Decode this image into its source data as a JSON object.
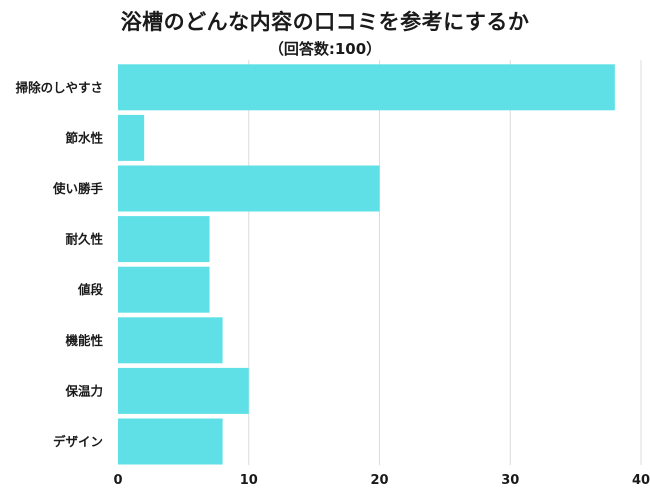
{
  "chart_data": {
    "type": "bar",
    "orientation": "horizontal",
    "title": "浴槽のどんな内容の口コミを参考にするか",
    "subtitle": "（回答数:100）",
    "categories": [
      "掃除のしやすさ",
      "節水性",
      "使い勝手",
      "耐久性",
      "値段",
      "機能性",
      "保温力",
      "デザイン"
    ],
    "values": [
      38,
      2,
      20,
      7,
      7,
      8,
      10,
      8
    ],
    "xlim": [
      0,
      40
    ],
    "xticks": [
      "0",
      "10",
      "20",
      "30",
      "40"
    ],
    "grid": true,
    "bar_color": "#5ee0e6",
    "grid_color": "#dcdcdc"
  }
}
